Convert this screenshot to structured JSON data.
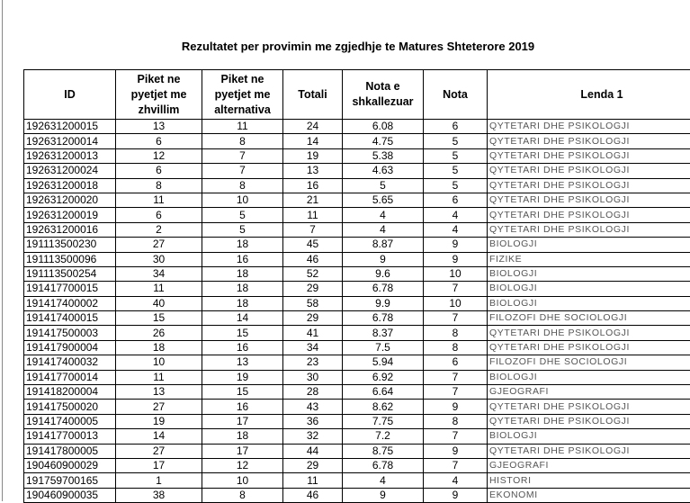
{
  "title": "Rezultatet per provimin me zgjedhje te Matures Shteterore 2019",
  "table": {
    "headers": [
      "ID",
      "Piket ne pyetjet me zhvillim",
      "Piket ne pyetjet me alternativa",
      "Totali",
      "Nota e shkallezuar",
      "Nota",
      "Lenda 1"
    ],
    "rows": [
      [
        "192631200015",
        "13",
        "11",
        "24",
        "6.08",
        "6",
        "QYTETARI DHE PSIKOLOGJI"
      ],
      [
        "192631200014",
        "6",
        "8",
        "14",
        "4.75",
        "5",
        "QYTETARI DHE PSIKOLOGJI"
      ],
      [
        "192631200013",
        "12",
        "7",
        "19",
        "5.38",
        "5",
        "QYTETARI DHE PSIKOLOGJI"
      ],
      [
        "192631200024",
        "6",
        "7",
        "13",
        "4.63",
        "5",
        "QYTETARI DHE PSIKOLOGJI"
      ],
      [
        "192631200018",
        "8",
        "8",
        "16",
        "5",
        "5",
        "QYTETARI DHE PSIKOLOGJI"
      ],
      [
        "192631200020",
        "11",
        "10",
        "21",
        "5.65",
        "6",
        "QYTETARI DHE PSIKOLOGJI"
      ],
      [
        "192631200019",
        "6",
        "5",
        "11",
        "4",
        "4",
        "QYTETARI DHE PSIKOLOGJI"
      ],
      [
        "192631200016",
        "2",
        "5",
        "7",
        "4",
        "4",
        "QYTETARI DHE PSIKOLOGJI"
      ],
      [
        "191113500230",
        "27",
        "18",
        "45",
        "8.87",
        "9",
        "BIOLOGJI"
      ],
      [
        "191113500096",
        "30",
        "16",
        "46",
        "9",
        "9",
        "FIZIKE"
      ],
      [
        "191113500254",
        "34",
        "18",
        "52",
        "9.6",
        "10",
        "BIOLOGJI"
      ],
      [
        "191417700015",
        "11",
        "18",
        "29",
        "6.78",
        "7",
        "BIOLOGJI"
      ],
      [
        "191417400002",
        "40",
        "18",
        "58",
        "9.9",
        "10",
        "BIOLOGJI"
      ],
      [
        "191417400015",
        "15",
        "14",
        "29",
        "6.78",
        "7",
        "FILOZOFI DHE SOCIOLOGJI"
      ],
      [
        "191417500003",
        "26",
        "15",
        "41",
        "8.37",
        "8",
        "QYTETARI DHE PSIKOLOGJI"
      ],
      [
        "191417900004",
        "18",
        "16",
        "34",
        "7.5",
        "8",
        "QYTETARI DHE PSIKOLOGJI"
      ],
      [
        "191417400032",
        "10",
        "13",
        "23",
        "5.94",
        "6",
        "FILOZOFI DHE SOCIOLOGJI"
      ],
      [
        "191417700014",
        "11",
        "19",
        "30",
        "6.92",
        "7",
        "BIOLOGJI"
      ],
      [
        "191418200004",
        "13",
        "15",
        "28",
        "6.64",
        "7",
        "GJEOGRAFI"
      ],
      [
        "191417500020",
        "27",
        "16",
        "43",
        "8.62",
        "9",
        "QYTETARI DHE PSIKOLOGJI"
      ],
      [
        "191417400005",
        "19",
        "17",
        "36",
        "7.75",
        "8",
        "QYTETARI DHE PSIKOLOGJI"
      ],
      [
        "191417700013",
        "14",
        "18",
        "32",
        "7.2",
        "7",
        "BIOLOGJI"
      ],
      [
        "191417800005",
        "27",
        "17",
        "44",
        "8.75",
        "9",
        "QYTETARI DHE PSIKOLOGJI"
      ],
      [
        "190460900029",
        "17",
        "12",
        "29",
        "6.78",
        "7",
        "GJEOGRAFI"
      ],
      [
        "191759700165",
        "1",
        "10",
        "11",
        "4",
        "4",
        "HISTORI"
      ],
      [
        "190460900035",
        "38",
        "8",
        "46",
        "9",
        "9",
        "EKONOMI"
      ]
    ]
  }
}
